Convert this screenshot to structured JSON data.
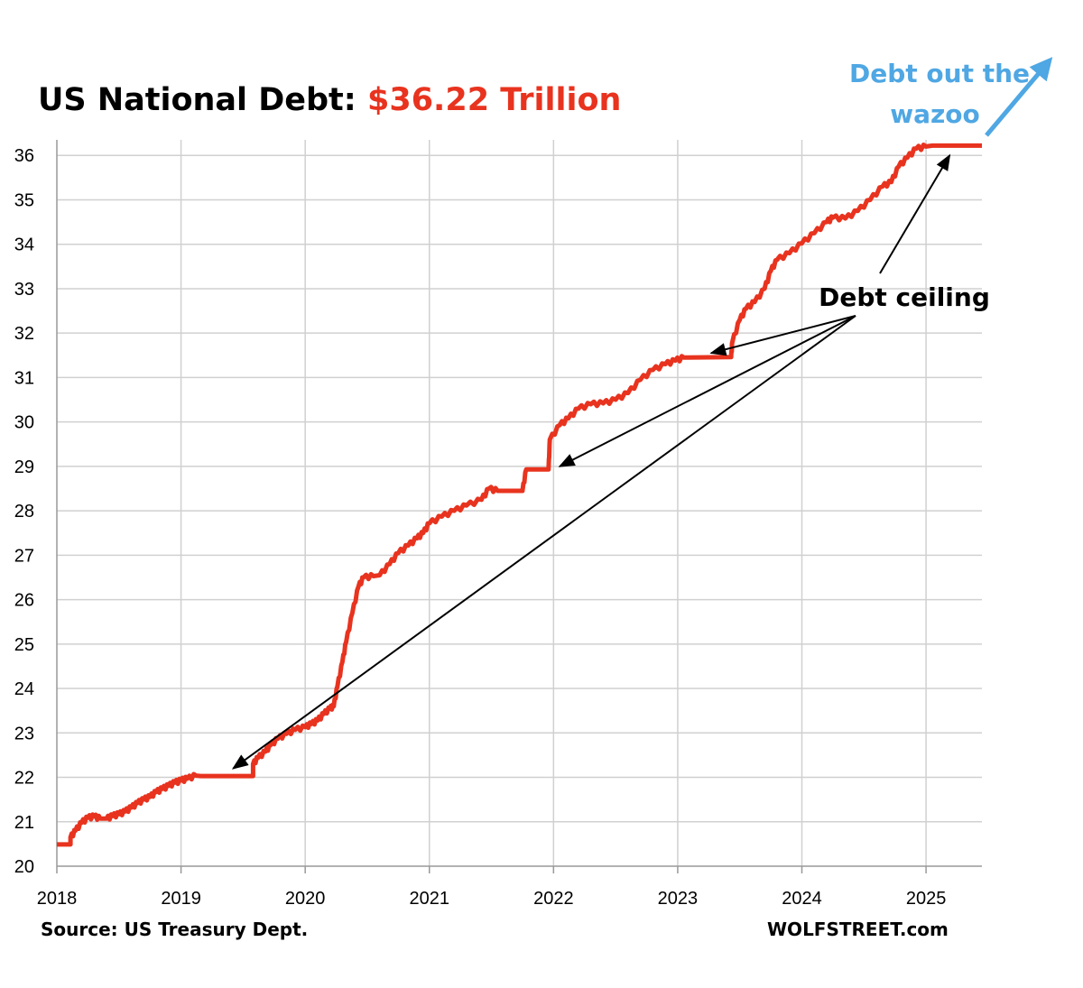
{
  "chart_data": {
    "type": "line",
    "title": "US National Debt: ",
    "title_value": "$36.22 Trillion",
    "xlabel": "",
    "ylabel": "",
    "xlim": [
      2018,
      2025.45
    ],
    "ylim": [
      20,
      36.35
    ],
    "x_ticks": [
      "2018",
      "2019",
      "2020",
      "2021",
      "2022",
      "2023",
      "2024",
      "2025"
    ],
    "y_ticks": [
      "20",
      "21",
      "22",
      "23",
      "24",
      "25",
      "26",
      "27",
      "28",
      "29",
      "30",
      "31",
      "32",
      "33",
      "34",
      "35",
      "36"
    ],
    "grid": true,
    "series": [
      {
        "name": "US National Debt (trillion $)",
        "color": "#e8331f",
        "points": [
          [
            2018.0,
            20.49
          ],
          [
            2018.11,
            20.49
          ],
          [
            2018.11,
            20.65
          ],
          [
            2018.15,
            20.8
          ],
          [
            2018.2,
            20.98
          ],
          [
            2018.25,
            21.09
          ],
          [
            2018.3,
            21.12
          ],
          [
            2018.35,
            21.07
          ],
          [
            2018.4,
            21.07
          ],
          [
            2018.45,
            21.13
          ],
          [
            2018.5,
            21.17
          ],
          [
            2018.55,
            21.23
          ],
          [
            2018.6,
            21.32
          ],
          [
            2018.65,
            21.42
          ],
          [
            2018.7,
            21.5
          ],
          [
            2018.75,
            21.56
          ],
          [
            2018.8,
            21.67
          ],
          [
            2018.85,
            21.74
          ],
          [
            2018.9,
            21.81
          ],
          [
            2018.95,
            21.88
          ],
          [
            2019.0,
            21.93
          ],
          [
            2019.05,
            21.97
          ],
          [
            2019.12,
            22.04
          ],
          [
            2019.16,
            22.03
          ],
          [
            2019.58,
            22.03
          ],
          [
            2019.58,
            22.3
          ],
          [
            2019.62,
            22.44
          ],
          [
            2019.68,
            22.58
          ],
          [
            2019.72,
            22.72
          ],
          [
            2019.78,
            22.87
          ],
          [
            2019.85,
            22.98
          ],
          [
            2019.92,
            23.07
          ],
          [
            2020.0,
            23.13
          ],
          [
            2020.05,
            23.2
          ],
          [
            2020.1,
            23.28
          ],
          [
            2020.15,
            23.43
          ],
          [
            2020.2,
            23.55
          ],
          [
            2020.23,
            23.6
          ],
          [
            2020.26,
            24.05
          ],
          [
            2020.3,
            24.6
          ],
          [
            2020.33,
            25.05
          ],
          [
            2020.38,
            25.7
          ],
          [
            2020.43,
            26.3
          ],
          [
            2020.47,
            26.5
          ],
          [
            2020.55,
            26.53
          ],
          [
            2020.6,
            26.55
          ],
          [
            2020.68,
            26.8
          ],
          [
            2020.75,
            27.05
          ],
          [
            2020.83,
            27.22
          ],
          [
            2020.9,
            27.38
          ],
          [
            2020.95,
            27.5
          ],
          [
            2021.0,
            27.72
          ],
          [
            2021.1,
            27.87
          ],
          [
            2021.2,
            28.0
          ],
          [
            2021.3,
            28.12
          ],
          [
            2021.42,
            28.25
          ],
          [
            2021.48,
            28.5
          ],
          [
            2021.55,
            28.45
          ],
          [
            2021.75,
            28.45
          ],
          [
            2021.78,
            28.93
          ],
          [
            2021.96,
            28.93
          ],
          [
            2021.97,
            29.6
          ],
          [
            2022.05,
            29.93
          ],
          [
            2022.12,
            30.08
          ],
          [
            2022.2,
            30.3
          ],
          [
            2022.3,
            30.4
          ],
          [
            2022.4,
            30.42
          ],
          [
            2022.5,
            30.5
          ],
          [
            2022.6,
            30.65
          ],
          [
            2022.7,
            30.95
          ],
          [
            2022.8,
            31.17
          ],
          [
            2022.9,
            31.3
          ],
          [
            2022.98,
            31.38
          ],
          [
            2023.05,
            31.45
          ],
          [
            2023.43,
            31.46
          ],
          [
            2023.44,
            31.8
          ],
          [
            2023.5,
            32.3
          ],
          [
            2023.55,
            32.55
          ],
          [
            2023.62,
            32.7
          ],
          [
            2023.7,
            33.0
          ],
          [
            2023.75,
            33.4
          ],
          [
            2023.8,
            33.65
          ],
          [
            2023.9,
            33.8
          ],
          [
            2024.0,
            34.02
          ],
          [
            2024.1,
            34.25
          ],
          [
            2024.2,
            34.5
          ],
          [
            2024.25,
            34.6
          ],
          [
            2024.35,
            34.58
          ],
          [
            2024.45,
            34.75
          ],
          [
            2024.55,
            35.0
          ],
          [
            2024.65,
            35.3
          ],
          [
            2024.72,
            35.4
          ],
          [
            2024.78,
            35.75
          ],
          [
            2024.85,
            35.95
          ],
          [
            2024.92,
            36.15
          ],
          [
            2025.0,
            36.2
          ],
          [
            2025.05,
            36.22
          ],
          [
            2025.45,
            36.22
          ]
        ]
      }
    ],
    "annotations": {
      "debt_ceiling_label": "Debt ceiling",
      "wazoo_line1": "Debt out the",
      "wazoo_line2": "wazoo",
      "debt_ceiling_targets": [
        [
          2019.42,
          22.2
        ],
        [
          2022.05,
          29.0
        ],
        [
          2023.27,
          31.55
        ],
        [
          2025.19,
          36.0
        ]
      ]
    },
    "source": "Source: US Treasury Dept.",
    "credit": "WOLFSTREET.com",
    "colors": {
      "line": "#e8331f",
      "title_value": "#e8331f",
      "wazoo": "#4fa7e3",
      "grid": "#d0d0d0"
    }
  }
}
